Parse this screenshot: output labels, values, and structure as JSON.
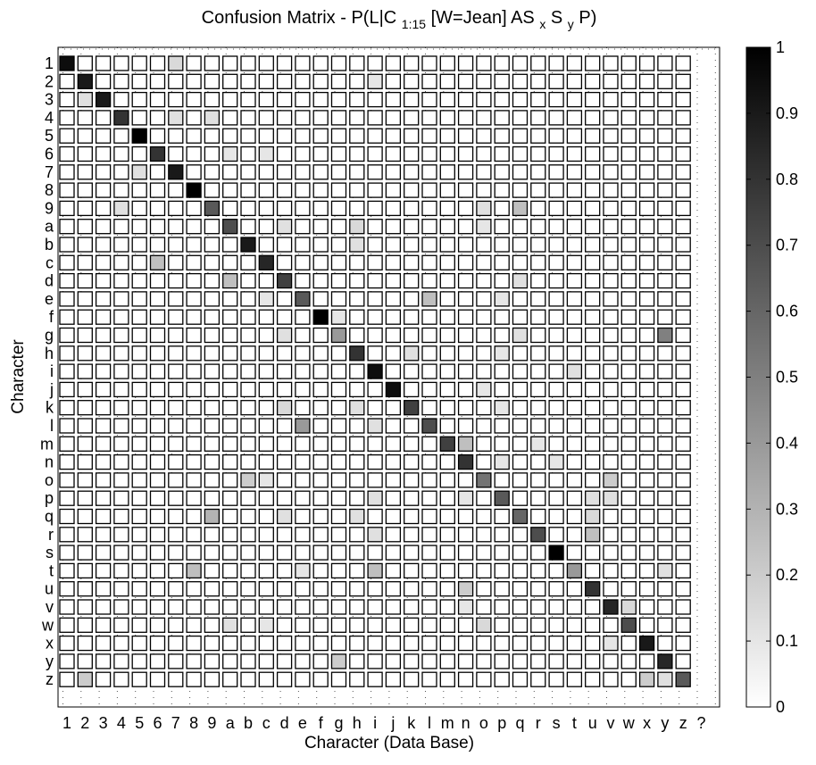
{
  "chart_data": {
    "type": "heatmap",
    "title": "Confusion Matrix - P(L|C",
    "title_parts": {
      "prefix": "Confusion Matrix - P(L|C",
      "sub_range": "1:15",
      "middle": "[W=Jean] AS",
      "sub_x": "x",
      "s_char": "S",
      "sub_y": "y",
      "suffix": "P)"
    },
    "xlabel": "Character (Data Base)",
    "ylabel": "Character",
    "x_categories": [
      "1",
      "2",
      "3",
      "4",
      "5",
      "6",
      "7",
      "8",
      "9",
      "a",
      "b",
      "c",
      "d",
      "e",
      "f",
      "g",
      "h",
      "i",
      "j",
      "k",
      "l",
      "m",
      "n",
      "o",
      "p",
      "q",
      "r",
      "s",
      "t",
      "u",
      "v",
      "w",
      "x",
      "y",
      "z",
      "?"
    ],
    "y_categories": [
      "1",
      "2",
      "3",
      "4",
      "5",
      "6",
      "7",
      "8",
      "9",
      "a",
      "b",
      "c",
      "d",
      "e",
      "f",
      "g",
      "h",
      "i",
      "j",
      "k",
      "l",
      "m",
      "n",
      "o",
      "p",
      "q",
      "r",
      "s",
      "t",
      "u",
      "v",
      "w",
      "x",
      "y",
      "z"
    ],
    "colorbar": {
      "range": [
        0,
        1
      ],
      "ticks": [
        "0",
        "0.1",
        "0.2",
        "0.3",
        "0.4",
        "0.5",
        "0.6",
        "0.7",
        "0.8",
        "0.9",
        "1"
      ],
      "colormap": "gray-reversed",
      "low_color": "#ffffff",
      "high_color": "#000000"
    },
    "grid": "dotted",
    "cells": [
      {
        "row": "1",
        "col": "1",
        "value": 0.95
      },
      {
        "row": "1",
        "col": "7",
        "value": 0.15
      },
      {
        "row": "2",
        "col": "2",
        "value": 0.9
      },
      {
        "row": "2",
        "col": "i",
        "value": 0.1
      },
      {
        "row": "3",
        "col": "2",
        "value": 0.12
      },
      {
        "row": "3",
        "col": "3",
        "value": 0.9
      },
      {
        "row": "4",
        "col": "4",
        "value": 0.8
      },
      {
        "row": "4",
        "col": "7",
        "value": 0.12
      },
      {
        "row": "4",
        "col": "9",
        "value": 0.12
      },
      {
        "row": "5",
        "col": "5",
        "value": 1.0
      },
      {
        "row": "6",
        "col": "6",
        "value": 0.8
      },
      {
        "row": "6",
        "col": "a",
        "value": 0.1
      },
      {
        "row": "6",
        "col": "c",
        "value": 0.1
      },
      {
        "row": "7",
        "col": "5",
        "value": 0.12
      },
      {
        "row": "7",
        "col": "7",
        "value": 0.9
      },
      {
        "row": "8",
        "col": "8",
        "value": 1.0
      },
      {
        "row": "9",
        "col": "4",
        "value": 0.12
      },
      {
        "row": "9",
        "col": "9",
        "value": 0.65
      },
      {
        "row": "9",
        "col": "o",
        "value": 0.12
      },
      {
        "row": "9",
        "col": "q",
        "value": 0.25
      },
      {
        "row": "a",
        "col": "a",
        "value": 0.7
      },
      {
        "row": "a",
        "col": "d",
        "value": 0.12
      },
      {
        "row": "a",
        "col": "h",
        "value": 0.15
      },
      {
        "row": "a",
        "col": "o",
        "value": 0.1
      },
      {
        "row": "b",
        "col": "b",
        "value": 0.9
      },
      {
        "row": "b",
        "col": "h",
        "value": 0.12
      },
      {
        "row": "c",
        "col": "6",
        "value": 0.25
      },
      {
        "row": "c",
        "col": "c",
        "value": 0.85
      },
      {
        "row": "d",
        "col": "a",
        "value": 0.25
      },
      {
        "row": "d",
        "col": "d",
        "value": 0.75
      },
      {
        "row": "d",
        "col": "q",
        "value": 0.12
      },
      {
        "row": "e",
        "col": "c",
        "value": 0.1
      },
      {
        "row": "e",
        "col": "e",
        "value": 0.65
      },
      {
        "row": "e",
        "col": "l",
        "value": 0.25
      },
      {
        "row": "e",
        "col": "p",
        "value": 0.1
      },
      {
        "row": "f",
        "col": "f",
        "value": 1.0
      },
      {
        "row": "f",
        "col": "g",
        "value": 0.1
      },
      {
        "row": "g",
        "col": "d",
        "value": 0.12
      },
      {
        "row": "g",
        "col": "g",
        "value": 0.4
      },
      {
        "row": "g",
        "col": "q",
        "value": 0.12
      },
      {
        "row": "g",
        "col": "y",
        "value": 0.5
      },
      {
        "row": "h",
        "col": "h",
        "value": 0.8
      },
      {
        "row": "h",
        "col": "k",
        "value": 0.12
      },
      {
        "row": "h",
        "col": "p",
        "value": 0.1
      },
      {
        "row": "i",
        "col": "i",
        "value": 0.95
      },
      {
        "row": "i",
        "col": "t",
        "value": 0.12
      },
      {
        "row": "j",
        "col": "j",
        "value": 0.95
      },
      {
        "row": "j",
        "col": "o",
        "value": 0.1
      },
      {
        "row": "k",
        "col": "d",
        "value": 0.15
      },
      {
        "row": "k",
        "col": "h",
        "value": 0.12
      },
      {
        "row": "k",
        "col": "k",
        "value": 0.75
      },
      {
        "row": "k",
        "col": "p",
        "value": 0.1
      },
      {
        "row": "l",
        "col": "e",
        "value": 0.4
      },
      {
        "row": "l",
        "col": "i",
        "value": 0.12
      },
      {
        "row": "l",
        "col": "l",
        "value": 0.7
      },
      {
        "row": "m",
        "col": "m",
        "value": 0.75
      },
      {
        "row": "m",
        "col": "n",
        "value": 0.25
      },
      {
        "row": "m",
        "col": "r",
        "value": 0.1
      },
      {
        "row": "n",
        "col": "n",
        "value": 0.8
      },
      {
        "row": "n",
        "col": "p",
        "value": 0.1
      },
      {
        "row": "n",
        "col": "s",
        "value": 0.1
      },
      {
        "row": "o",
        "col": "b",
        "value": 0.2
      },
      {
        "row": "o",
        "col": "c",
        "value": 0.1
      },
      {
        "row": "o",
        "col": "o",
        "value": 0.55
      },
      {
        "row": "o",
        "col": "v",
        "value": 0.2
      },
      {
        "row": "p",
        "col": "i",
        "value": 0.12
      },
      {
        "row": "p",
        "col": "n",
        "value": 0.1
      },
      {
        "row": "p",
        "col": "p",
        "value": 0.65
      },
      {
        "row": "p",
        "col": "u",
        "value": 0.12
      },
      {
        "row": "p",
        "col": "v",
        "value": 0.12
      },
      {
        "row": "q",
        "col": "9",
        "value": 0.3
      },
      {
        "row": "q",
        "col": "d",
        "value": 0.12
      },
      {
        "row": "q",
        "col": "h",
        "value": 0.12
      },
      {
        "row": "q",
        "col": "q",
        "value": 0.6
      },
      {
        "row": "q",
        "col": "u",
        "value": 0.15
      },
      {
        "row": "r",
        "col": "i",
        "value": 0.12
      },
      {
        "row": "r",
        "col": "r",
        "value": 0.7
      },
      {
        "row": "r",
        "col": "u",
        "value": 0.25
      },
      {
        "row": "s",
        "col": "s",
        "value": 1.0
      },
      {
        "row": "t",
        "col": "8",
        "value": 0.25
      },
      {
        "row": "t",
        "col": "e",
        "value": 0.1
      },
      {
        "row": "t",
        "col": "i",
        "value": 0.25
      },
      {
        "row": "t",
        "col": "t",
        "value": 0.4
      },
      {
        "row": "t",
        "col": "y",
        "value": 0.12
      },
      {
        "row": "u",
        "col": "n",
        "value": 0.2
      },
      {
        "row": "u",
        "col": "u",
        "value": 0.8
      },
      {
        "row": "v",
        "col": "n",
        "value": 0.1
      },
      {
        "row": "v",
        "col": "v",
        "value": 0.85
      },
      {
        "row": "v",
        "col": "w",
        "value": 0.15
      },
      {
        "row": "w",
        "col": "a",
        "value": 0.12
      },
      {
        "row": "w",
        "col": "c",
        "value": 0.1
      },
      {
        "row": "w",
        "col": "o",
        "value": 0.15
      },
      {
        "row": "w",
        "col": "w",
        "value": 0.7
      },
      {
        "row": "x",
        "col": "v",
        "value": 0.1
      },
      {
        "row": "x",
        "col": "x",
        "value": 0.9
      },
      {
        "row": "y",
        "col": "g",
        "value": 0.2
      },
      {
        "row": "y",
        "col": "y",
        "value": 0.85
      },
      {
        "row": "z",
        "col": "2",
        "value": 0.2
      },
      {
        "row": "z",
        "col": "x",
        "value": 0.2
      },
      {
        "row": "z",
        "col": "y",
        "value": 0.12
      },
      {
        "row": "z",
        "col": "z",
        "value": 0.65
      }
    ]
  }
}
